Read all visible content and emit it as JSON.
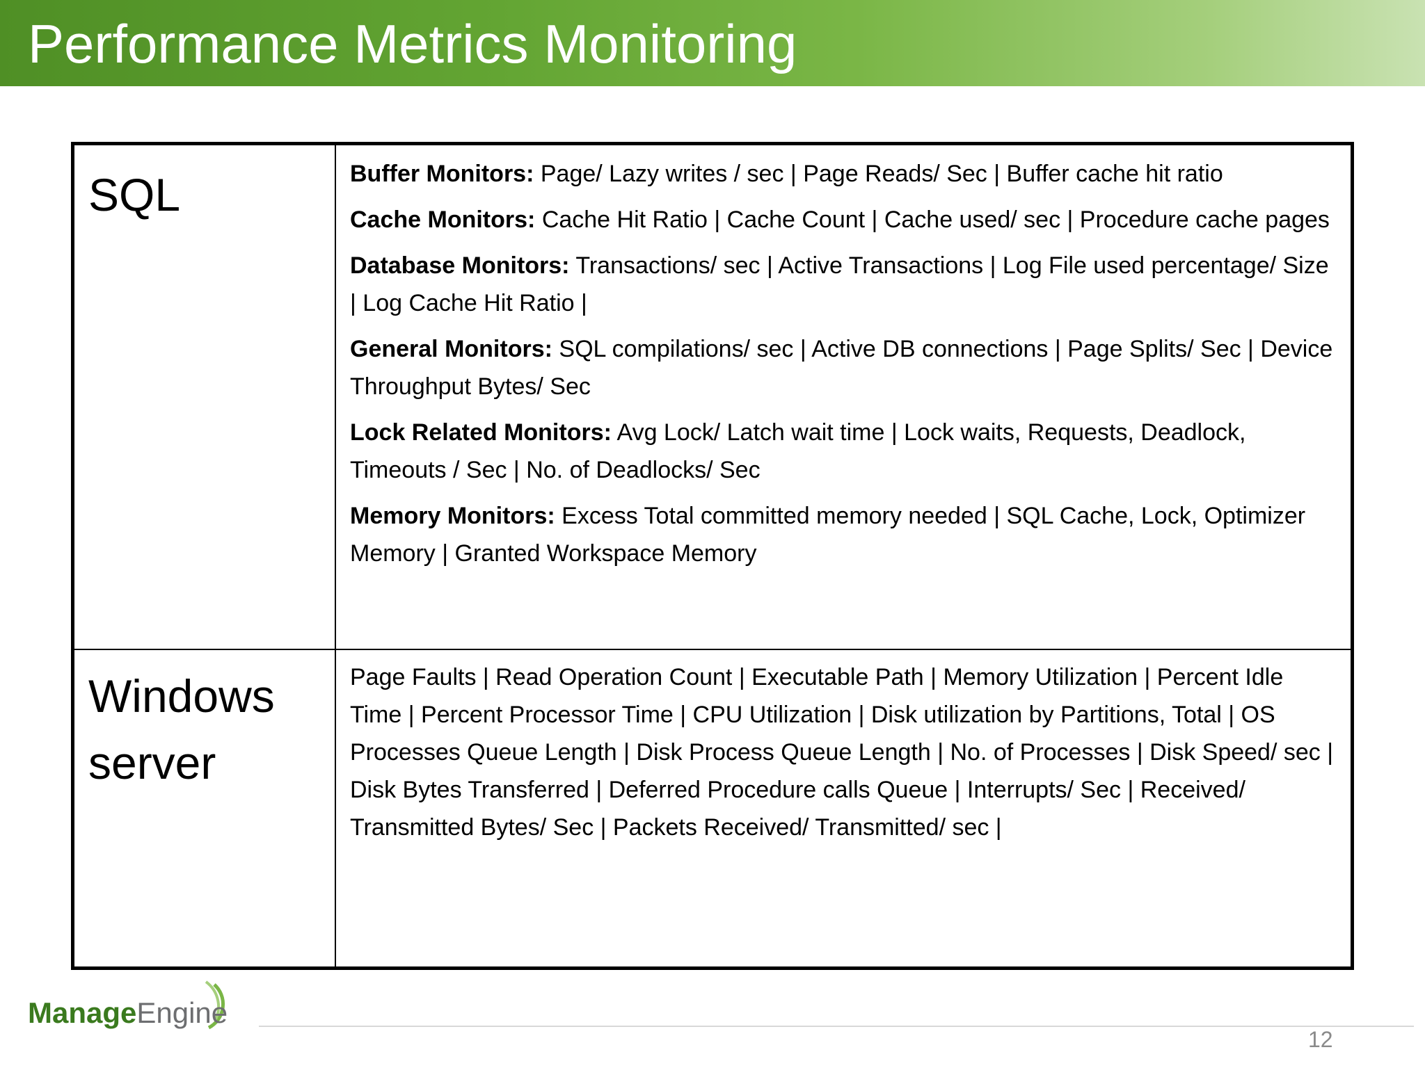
{
  "header": {
    "title": "Performance Metrics Monitoring"
  },
  "table": {
    "rows": [
      {
        "label": "SQL",
        "items": [
          {
            "label": "Buffer Monitors:",
            "text": "Page/ Lazy writes / sec | Page Reads/ Sec | Buffer cache hit ratio"
          },
          {
            "label": "Cache Monitors:",
            "text": "Cache Hit Ratio | Cache Count | Cache used/ sec | Procedure cache pages"
          },
          {
            "label": "Database Monitors:",
            "text": "Transactions/ sec | Active Transactions | Log File used percentage/ Size | Log Cache Hit Ratio |"
          },
          {
            "label": "General Monitors:",
            "text": "SQL compilations/ sec | Active DB connections | Page Splits/ Sec | Device Throughput Bytes/ Sec"
          },
          {
            "label": "Lock Related Monitors:",
            "text": "Avg Lock/ Latch wait time | Lock waits, Requests, Deadlock, Timeouts / Sec | No. of Deadlocks/ Sec"
          },
          {
            "label": "Memory Monitors:",
            "text": "Excess Total committed memory needed | SQL Cache, Lock, Optimizer Memory | Granted Workspace Memory"
          }
        ]
      },
      {
        "label": "Windows server",
        "text": "Page Faults |  Read Operation Count | Executable Path | Memory Utilization | Percent Idle Time | Percent Processor Time | CPU Utilization | Disk utilization by Partitions, Total | OS Processes Queue Length | Disk Process Queue Length | No. of Processes | Disk Speed/ sec | Disk Bytes Transferred | Deferred Procedure calls Queue | Interrupts/ Sec | Received/ Transmitted Bytes/ Sec | Packets Received/ Transmitted/ sec |"
      }
    ]
  },
  "footer": {
    "logo": {
      "part1": "Manage",
      "part2": "Engine"
    },
    "page_number": "12"
  }
}
